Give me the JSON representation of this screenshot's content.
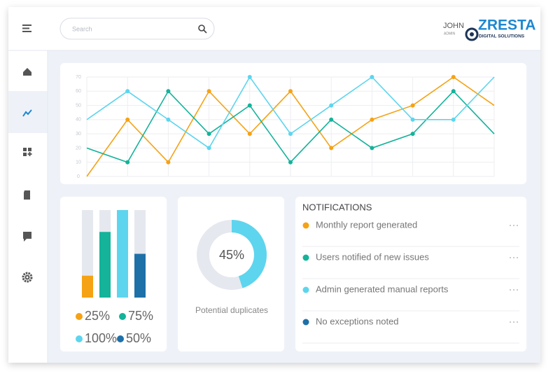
{
  "header": {
    "search_placeholder": "Search",
    "user_name": "JOHN",
    "user_role": "ADMIN",
    "logo": "ZRESTA",
    "logo_subtitle": "DIGITAL SOLUTIONS"
  },
  "chart_data": [
    {
      "type": "line",
      "categories": [
        null,
        null,
        null,
        null,
        null,
        null,
        null,
        null,
        null,
        null,
        null
      ],
      "series": [
        {
          "color": "#f5a214",
          "values": [
            0,
            40,
            10,
            60,
            30,
            60,
            20,
            40,
            50,
            70,
            50
          ]
        },
        {
          "color": "#14b39a",
          "values": [
            20,
            10,
            60,
            30,
            50,
            10,
            40,
            20,
            30,
            60,
            30
          ]
        },
        {
          "color": "#5dd5ee",
          "values": [
            40,
            60,
            40,
            20,
            70,
            30,
            50,
            70,
            40,
            40,
            70
          ]
        }
      ],
      "ylim": [
        0,
        70
      ],
      "yticks": [
        0,
        10,
        20,
        30,
        40,
        50,
        60,
        70
      ],
      "grid": true
    },
    {
      "type": "bar",
      "values": [
        25,
        75,
        100,
        50
      ],
      "value_labels": [
        "25%",
        "75%",
        "100%",
        "50%"
      ],
      "colors": [
        "#f5a214",
        "#14b39a",
        "#5dd5ee",
        "#1e70a8"
      ],
      "ylim": [
        0,
        100
      ]
    },
    {
      "type": "pie",
      "values": [
        45
      ],
      "value_labels": [
        "45%"
      ],
      "color": "#5dd5ee",
      "label": "Potential duplicates"
    }
  ],
  "notifications": {
    "title": "NOTIFICATIONS",
    "items": [
      {
        "text": "Monthly report generated",
        "color": "#f5a214"
      },
      {
        "text": "Users notified of new issues",
        "color": "#14b39a"
      },
      {
        "text": "Admin generated manual reports",
        "color": "#5dd5ee"
      },
      {
        "text": "No exceptions noted",
        "color": "#1e70a8"
      }
    ]
  }
}
